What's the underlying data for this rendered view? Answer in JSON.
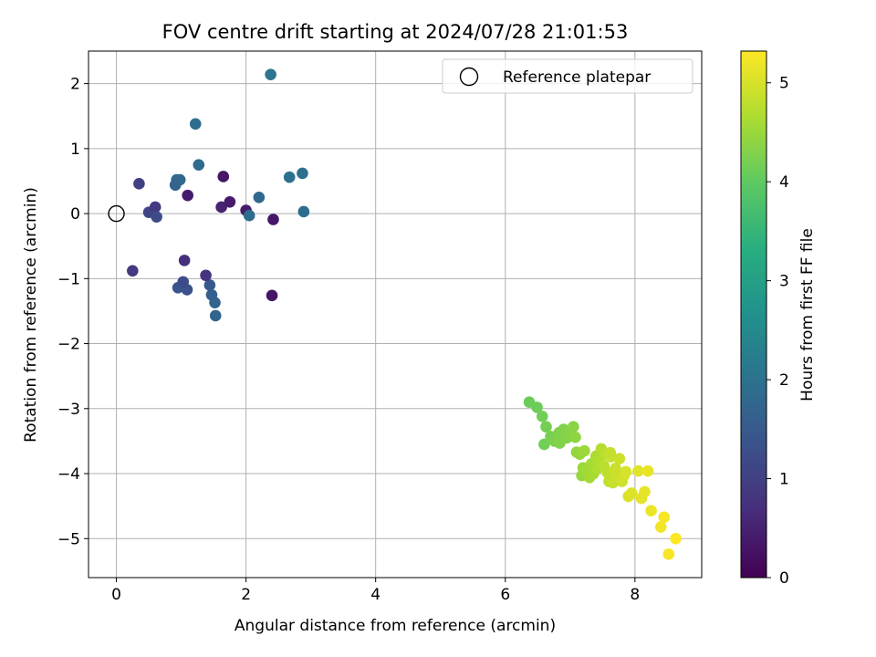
{
  "chart_data": {
    "type": "scatter",
    "title": "FOV centre drift starting at 2024/07/28 21:01:53",
    "xlabel": "Angular distance from reference (arcmin)",
    "ylabel": "Rotation from reference (arcmin)",
    "xlim": [
      -0.43,
      9.03
    ],
    "ylim": [
      -5.6,
      2.5
    ],
    "xticks": [
      0,
      2,
      4,
      6,
      8
    ],
    "yticks": [
      -5,
      -4,
      -3,
      -2,
      -1,
      0,
      1,
      2
    ],
    "grid": true,
    "legend": {
      "position": "top-right",
      "entries": [
        "Reference platepar"
      ]
    },
    "reference_point": {
      "x": 0,
      "y": 0
    },
    "colorbar": {
      "label": "Hours from first FF file",
      "colormap": "viridis",
      "range": [
        0,
        5.32
      ],
      "ticks": [
        0,
        1,
        2,
        3,
        4,
        5
      ]
    },
    "series": [
      {
        "x": [
          2.38,
          1.22,
          1.27,
          1.65,
          0.93,
          0.98,
          0.91,
          2.67,
          2.87,
          2.89,
          2.42,
          2.4,
          1.53,
          1.52,
          1.47,
          1.44,
          0.95,
          1.09,
          1.03,
          2.0,
          2.2,
          0.35,
          0.5,
          0.6,
          0.62,
          1.62,
          1.1,
          1.75,
          2.05,
          1.38,
          1.05,
          0.25
        ],
        "y": [
          2.14,
          1.38,
          0.75,
          0.57,
          0.52,
          0.52,
          0.44,
          0.56,
          0.62,
          0.03,
          -0.09,
          -1.26,
          -1.57,
          -1.37,
          -1.25,
          -1.1,
          -1.14,
          -1.17,
          -1.05,
          0.05,
          0.25,
          0.46,
          0.02,
          0.1,
          -0.05,
          0.1,
          0.28,
          0.18,
          -0.03,
          -0.95,
          -0.72,
          -0.88
        ],
        "c": [
          2.05,
          1.9,
          1.85,
          0.3,
          1.8,
          1.8,
          1.7,
          1.95,
          1.95,
          1.9,
          0.35,
          0.3,
          1.7,
          1.7,
          1.6,
          1.5,
          1.4,
          1.3,
          1.2,
          0.4,
          1.8,
          1.0,
          1.1,
          0.9,
          1.2,
          0.5,
          0.4,
          0.4,
          1.9,
          0.8,
          0.7,
          0.9
        ]
      },
      {
        "x": [
          6.37,
          6.49,
          6.57,
          6.6,
          6.63,
          6.7,
          6.76,
          6.83,
          6.9,
          6.95,
          7.0,
          7.05,
          7.08,
          7.1,
          7.15,
          7.18,
          7.2,
          7.22,
          7.25,
          7.3,
          7.33,
          7.36,
          7.4,
          7.42,
          7.45,
          7.48,
          7.52,
          7.55,
          7.58,
          7.6,
          7.63,
          7.66,
          7.7,
          7.73,
          7.76,
          7.8,
          7.83,
          7.86,
          7.9,
          7.95,
          8.05,
          8.1,
          8.15,
          8.2,
          8.25,
          8.4,
          8.45,
          8.52,
          8.63,
          6.84,
          7.62,
          7.7
        ],
        "y": [
          -2.9,
          -2.98,
          -3.12,
          -3.55,
          -3.28,
          -3.43,
          -3.5,
          -3.37,
          -3.32,
          -3.45,
          -3.36,
          -3.28,
          -3.44,
          -3.67,
          -3.7,
          -4.03,
          -3.91,
          -3.65,
          -3.96,
          -4.06,
          -3.85,
          -4.0,
          -3.73,
          -3.92,
          -3.82,
          -3.62,
          -3.88,
          -3.7,
          -3.99,
          -4.12,
          -3.74,
          -4.14,
          -3.92,
          -4.03,
          -3.77,
          -4.12,
          -4.03,
          -3.97,
          -4.35,
          -4.3,
          -3.96,
          -4.38,
          -4.28,
          -3.96,
          -4.57,
          -4.82,
          -4.67,
          -5.24,
          -5.0,
          -3.53,
          -3.68,
          -3.95
        ],
        "c": [
          4.1,
          4.12,
          4.15,
          4.15,
          4.18,
          4.2,
          4.25,
          4.28,
          4.3,
          4.32,
          4.35,
          4.37,
          4.4,
          4.42,
          4.45,
          4.47,
          4.5,
          4.52,
          4.55,
          4.57,
          4.6,
          4.62,
          4.65,
          4.67,
          4.7,
          4.72,
          4.75,
          4.78,
          4.8,
          4.82,
          4.85,
          4.87,
          4.88,
          4.9,
          4.92,
          4.95,
          4.97,
          5.0,
          5.02,
          5.05,
          5.08,
          5.1,
          5.12,
          5.15,
          5.18,
          5.22,
          5.25,
          5.28,
          5.3,
          4.3,
          4.85,
          4.9
        ]
      }
    ]
  }
}
